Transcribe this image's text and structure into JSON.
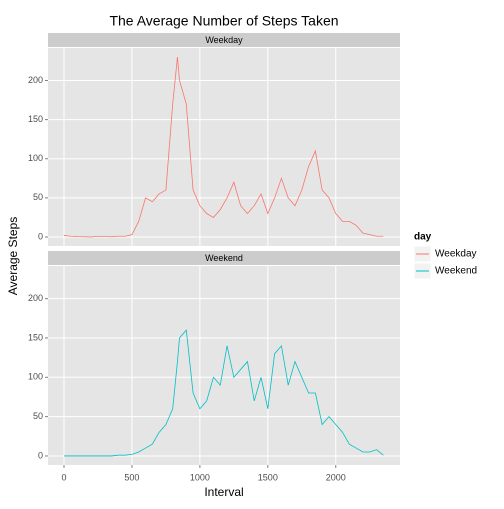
{
  "chart_data": {
    "type": "line",
    "title": "The Average Number of Steps Taken",
    "xlabel": "Interval",
    "ylabel": "Average Steps",
    "legend_title": "day",
    "facet": true,
    "grid": true,
    "x": [
      0,
      50,
      100,
      150,
      200,
      250,
      300,
      350,
      400,
      450,
      500,
      550,
      600,
      650,
      700,
      750,
      800,
      835,
      850,
      900,
      950,
      1000,
      1050,
      1100,
      1150,
      1200,
      1250,
      1300,
      1350,
      1400,
      1450,
      1500,
      1550,
      1600,
      1650,
      1700,
      1750,
      1800,
      1850,
      1900,
      1950,
      2000,
      2050,
      2100,
      2150,
      2200,
      2250,
      2300,
      2350
    ],
    "series": [
      {
        "name": "Weekday",
        "color": "#F8766D",
        "values": [
          2,
          1,
          0.5,
          0.3,
          0,
          1,
          0.5,
          0.3,
          1,
          1,
          3,
          20,
          50,
          45,
          55,
          60,
          170,
          230,
          200,
          170,
          60,
          40,
          30,
          25,
          35,
          50,
          70,
          40,
          30,
          40,
          55,
          30,
          50,
          75,
          50,
          40,
          60,
          90,
          110,
          60,
          50,
          30,
          20,
          20,
          15,
          5,
          3,
          1,
          1
        ]
      },
      {
        "name": "Weekend",
        "color": "#00BFC4",
        "values": [
          0,
          0,
          0,
          0,
          0,
          0,
          0,
          0,
          1,
          1,
          2,
          5,
          10,
          15,
          30,
          40,
          60,
          120,
          150,
          160,
          80,
          60,
          70,
          100,
          90,
          140,
          100,
          110,
          120,
          70,
          100,
          60,
          130,
          140,
          90,
          120,
          100,
          80,
          80,
          40,
          50,
          40,
          30,
          15,
          10,
          5,
          5,
          8,
          1
        ]
      }
    ],
    "xlim": [
      -117.75,
      2472.75
    ],
    "xticks": [
      0,
      500,
      1000,
      1500,
      2000
    ],
    "ylim": [
      -11.5,
      241.5
    ],
    "yticks": [
      0,
      50,
      100,
      150,
      200
    ]
  }
}
